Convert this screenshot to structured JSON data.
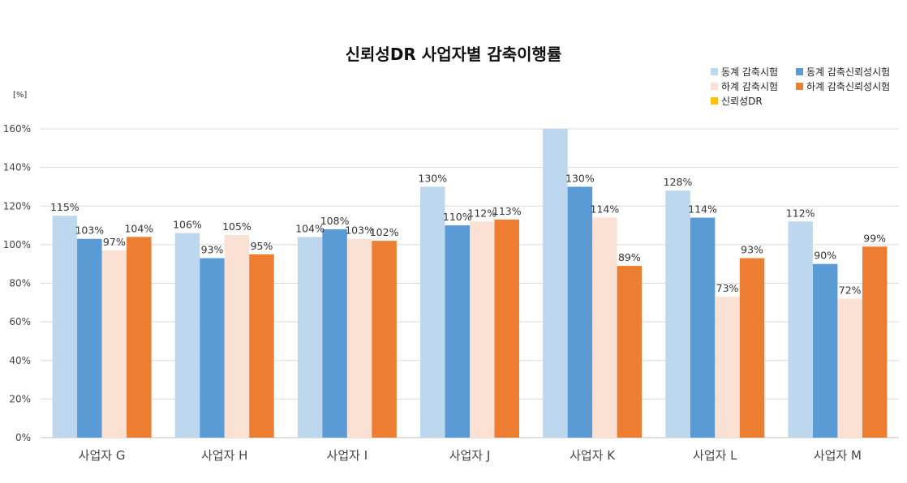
{
  "chart_data": {
    "type": "bar",
    "title": "신뢰성DR 사업자별 감축이행률",
    "unit_label": "[%]",
    "categories": [
      "사업자 G",
      "사업자 H",
      "사업자 I",
      "사업자 J",
      "사업자 K",
      "사업자 L",
      "사업자 M"
    ],
    "series": [
      {
        "name": "동계 감축시험",
        "color": "#bdd7ee",
        "values": [
          115,
          106,
          104,
          130,
          160,
          128,
          112
        ],
        "labels": [
          "115%",
          "106%",
          "104%",
          "130%",
          "",
          "128%",
          "112%"
        ]
      },
      {
        "name": "동계 감축신뢰성시험",
        "color": "#5b9bd5",
        "values": [
          103,
          93,
          108,
          110,
          130,
          114,
          90
        ],
        "labels": [
          "103%",
          "93%",
          "108%",
          "110%",
          "130%",
          "114%",
          "90%"
        ]
      },
      {
        "name": "하계 감축시험",
        "color": "#fbe0d4",
        "values": [
          97,
          105,
          103,
          112,
          114,
          73,
          72
        ],
        "labels": [
          "97%",
          "105%",
          "103%",
          "112%",
          "114%",
          "73%",
          "72%"
        ]
      },
      {
        "name": "하계 감축신뢰성시험",
        "color": "#ed7d31",
        "values": [
          104,
          95,
          102,
          113,
          89,
          93,
          99
        ],
        "labels": [
          "104%",
          "95%",
          "102%",
          "113%",
          "89%",
          "93%",
          "99%"
        ]
      }
    ],
    "extra_legend": [
      {
        "name": "신뢰성DR",
        "color": "#ffc000"
      }
    ],
    "ylim": [
      0,
      160
    ],
    "yticks": [
      0,
      20,
      40,
      60,
      80,
      100,
      120,
      140,
      160
    ],
    "ytick_labels": [
      "0%",
      "20%",
      "40%",
      "60%",
      "80%",
      "100%",
      "120%",
      "140%",
      "160%"
    ],
    "grid": true,
    "legend_position": "top-right"
  }
}
